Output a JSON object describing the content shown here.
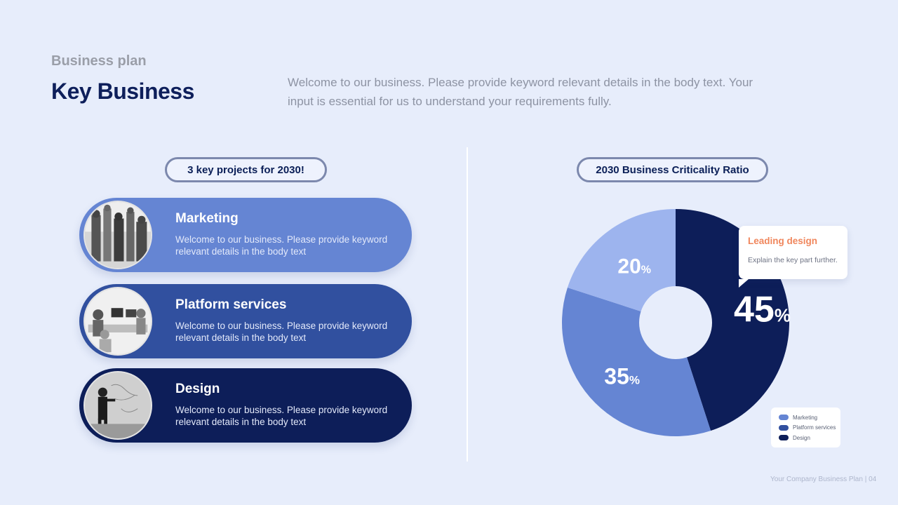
{
  "header": {
    "kicker": "Business plan",
    "title": "Key Business",
    "intro": "Welcome to our business. Please provide keyword relevant details in the body text. Your input is essential for us to understand your requirements fully."
  },
  "left": {
    "badge": "3 key projects for 2030!",
    "cards": [
      {
        "title": "Marketing",
        "body": "Welcome to our business. Please provide keyword relevant details in the body text"
      },
      {
        "title": "Platform services",
        "body": "Welcome to our business. Please provide keyword relevant details in the body text"
      },
      {
        "title": "Design",
        "body": "Welcome to our business. Please provide keyword relevant details in the body text"
      }
    ]
  },
  "right": {
    "badge": "2030 Business Criticality Ratio",
    "callout": {
      "title": "Leading design",
      "body": "Explain the key part further."
    }
  },
  "chart_data": {
    "type": "pie",
    "title": "2030 Business Criticality Ratio",
    "donut": true,
    "categories": [
      "Marketing",
      "Platform services",
      "Design"
    ],
    "values": [
      20,
      35,
      45
    ],
    "value_labels": [
      "20",
      "35",
      "45"
    ],
    "unit": "%",
    "colors": [
      "#9db4ee",
      "#6585d3",
      "#0d1e59"
    ],
    "legend": "bottom-right"
  },
  "footer": {
    "text": "Your Company Business Plan | 04"
  }
}
